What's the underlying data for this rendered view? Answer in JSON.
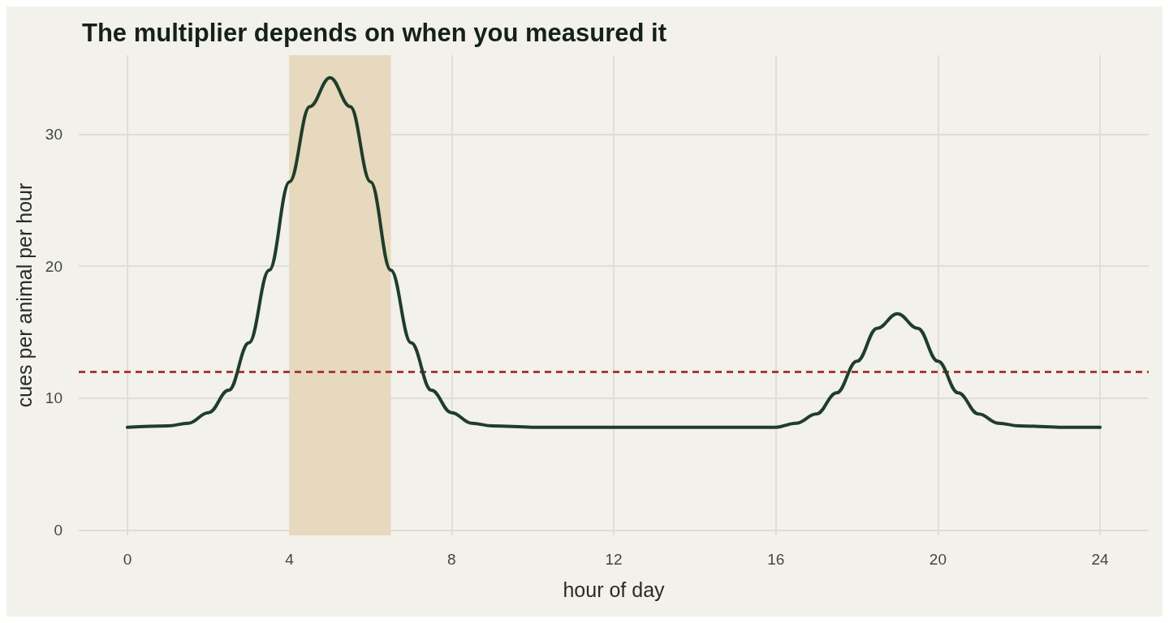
{
  "chart_data": {
    "type": "line",
    "title": "The multiplier depends on when you measured it",
    "xlabel": "hour of day",
    "ylabel": "cues per animal per hour",
    "x": [
      0,
      1,
      1.5,
      2,
      2.5,
      3,
      3.5,
      4,
      4.5,
      5,
      5.5,
      6,
      6.5,
      7,
      7.5,
      8,
      8.5,
      9,
      10,
      12,
      14,
      16,
      16.5,
      17,
      17.5,
      18,
      18.5,
      19,
      19.5,
      20,
      20.5,
      21,
      21.5,
      22,
      23,
      24
    ],
    "series": [
      {
        "color": "#1f3d2b",
        "values": [
          7.8,
          7.9,
          8.1,
          8.9,
          10.6,
          14.2,
          19.7,
          26.4,
          32.1,
          34.3,
          32.1,
          26.4,
          19.7,
          14.2,
          10.6,
          8.9,
          8.1,
          7.9,
          7.8,
          7.8,
          7.8,
          7.8,
          8.1,
          8.8,
          10.4,
          12.8,
          15.3,
          16.4,
          15.3,
          12.8,
          10.4,
          8.8,
          8.1,
          7.9,
          7.8,
          7.8
        ]
      }
    ],
    "xlim": [
      -1.2,
      25.2
    ],
    "xticks": [
      0,
      4,
      8,
      12,
      16,
      20,
      24
    ],
    "ylim": [
      -0.4,
      36
    ],
    "yticks": [
      0,
      10,
      20,
      30
    ],
    "ref_lines": [
      {
        "axis": "y",
        "value": 12,
        "color": "#a83a3a",
        "line_style": "dashed"
      }
    ],
    "bands": [
      {
        "axis": "x",
        "from": 4,
        "to": 6.5,
        "color": "#e6d9bd"
      }
    ],
    "grid": true,
    "marker": "none",
    "line_style": "solid"
  }
}
